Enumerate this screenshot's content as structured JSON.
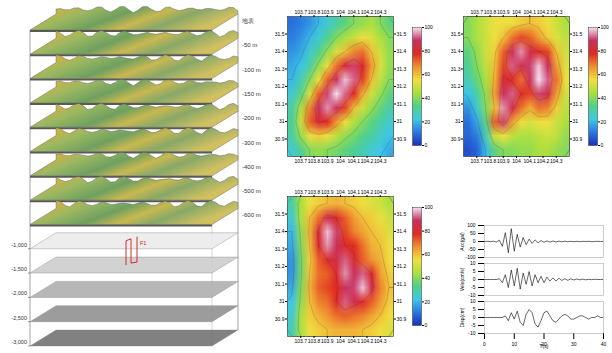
{
  "layer_diagram": {
    "right_labels": [
      "地表",
      "-50 m",
      "-100 m",
      "-150 m",
      "-200 m",
      "-300 m",
      "-400 m",
      "-500 m",
      "-600 m"
    ],
    "left_labels": [
      "-1,000",
      "-1,500",
      "-2,000",
      "-2,500",
      "-3,000"
    ],
    "fault_label": "F1"
  },
  "chart_data": [
    {
      "type": "heatmap",
      "xlim": [
        103.6,
        104.4
      ],
      "xticks": [
        103.7,
        103.8,
        103.9,
        104.0,
        104.1,
        104.2,
        104.3
      ],
      "ylim": [
        30.8,
        31.6
      ],
      "yticks": [
        30.9,
        31.0,
        31.1,
        31.2,
        31.3,
        31.4,
        31.5
      ],
      "colorbar": {
        "range": [
          0,
          100
        ],
        "ticks": [
          0,
          20,
          40,
          60,
          80,
          100
        ]
      },
      "contours": [
        20,
        40,
        60,
        80
      ],
      "cells": [
        [
          10,
          12,
          15,
          20,
          25,
          30,
          35,
          40,
          42,
          45,
          40,
          35
        ],
        [
          12,
          15,
          20,
          25,
          32,
          40,
          45,
          50,
          55,
          52,
          45,
          40
        ],
        [
          15,
          18,
          25,
          32,
          42,
          52,
          60,
          68,
          70,
          60,
          50,
          42
        ],
        [
          18,
          22,
          30,
          42,
          55,
          70,
          82,
          90,
          80,
          65,
          52,
          42
        ],
        [
          20,
          28,
          40,
          55,
          72,
          88,
          98,
          92,
          75,
          60,
          48,
          40
        ],
        [
          25,
          35,
          52,
          72,
          90,
          100,
          92,
          78,
          62,
          50,
          42,
          35
        ],
        [
          30,
          45,
          68,
          88,
          95,
          88,
          75,
          60,
          50,
          42,
          36,
          30
        ],
        [
          32,
          50,
          72,
          82,
          78,
          66,
          55,
          46,
          40,
          35,
          30,
          25
        ],
        [
          30,
          42,
          55,
          58,
          55,
          48,
          42,
          38,
          34,
          30,
          26,
          22
        ],
        [
          25,
          32,
          40,
          42,
          40,
          38,
          35,
          32,
          28,
          25,
          22,
          18
        ]
      ]
    },
    {
      "type": "heatmap",
      "xlim": [
        103.6,
        104.4
      ],
      "xticks": [
        103.7,
        103.8,
        103.9,
        104.0,
        104.1,
        104.2,
        104.3
      ],
      "ylim": [
        30.8,
        31.6
      ],
      "yticks": [
        30.9,
        31.0,
        31.1,
        31.2,
        31.3,
        31.4,
        31.5
      ],
      "colorbar": {
        "range": [
          0,
          100
        ],
        "ticks": [
          0,
          20,
          40,
          60,
          80,
          100
        ]
      },
      "contours": [
        20,
        40,
        60,
        80
      ],
      "cells": [
        [
          40,
          45,
          50,
          55,
          55,
          55,
          58,
          60,
          58,
          55,
          50,
          45
        ],
        [
          40,
          45,
          50,
          55,
          60,
          70,
          75,
          72,
          65,
          58,
          52,
          48
        ],
        [
          35,
          42,
          50,
          58,
          72,
          88,
          95,
          85,
          80,
          75,
          60,
          50
        ],
        [
          32,
          40,
          48,
          60,
          75,
          92,
          85,
          90,
          98,
          88,
          65,
          52
        ],
        [
          28,
          36,
          45,
          62,
          82,
          78,
          70,
          88,
          100,
          92,
          70,
          55
        ],
        [
          22,
          30,
          42,
          65,
          88,
          92,
          80,
          75,
          90,
          85,
          65,
          50
        ],
        [
          15,
          25,
          40,
          60,
          95,
          85,
          70,
          62,
          70,
          68,
          58,
          48
        ],
        [
          10,
          18,
          35,
          72,
          90,
          65,
          55,
          52,
          55,
          55,
          50,
          45
        ],
        [
          8,
          12,
          28,
          50,
          55,
          48,
          45,
          45,
          48,
          50,
          48,
          42
        ],
        [
          5,
          8,
          20,
          35,
          40,
          40,
          42,
          42,
          45,
          45,
          42,
          40
        ]
      ]
    },
    {
      "type": "heatmap",
      "xlim": [
        103.6,
        104.4
      ],
      "xticks": [
        103.7,
        103.8,
        103.9,
        104.0,
        104.1,
        104.2,
        104.3
      ],
      "ylim": [
        30.8,
        31.6
      ],
      "yticks": [
        30.9,
        31.0,
        31.1,
        31.2,
        31.3,
        31.4,
        31.5
      ],
      "colorbar": {
        "range": [
          0,
          100
        ],
        "ticks": [
          0,
          20,
          40,
          60,
          80,
          100
        ]
      },
      "contours": [
        20,
        40,
        60,
        80
      ],
      "cells": [
        [
          30,
          45,
          55,
          58,
          60,
          62,
          60,
          58,
          55,
          52,
          50,
          45
        ],
        [
          25,
          45,
          60,
          70,
          85,
          80,
          72,
          65,
          60,
          58,
          55,
          50
        ],
        [
          20,
          42,
          62,
          82,
          98,
          90,
          75,
          68,
          64,
          60,
          58,
          52
        ],
        [
          18,
          40,
          60,
          80,
          95,
          88,
          80,
          78,
          70,
          62,
          60,
          55
        ],
        [
          15,
          38,
          58,
          72,
          80,
          85,
          92,
          82,
          72,
          66,
          62,
          56
        ],
        [
          15,
          38,
          60,
          70,
          72,
          80,
          95,
          88,
          92,
          80,
          65,
          58
        ],
        [
          18,
          40,
          62,
          72,
          75,
          78,
          88,
          90,
          98,
          85,
          68,
          60
        ],
        [
          22,
          42,
          60,
          68,
          70,
          80,
          92,
          85,
          80,
          72,
          65,
          58
        ],
        [
          25,
          45,
          58,
          62,
          66,
          70,
          72,
          70,
          68,
          64,
          60,
          56
        ],
        [
          28,
          45,
          55,
          58,
          60,
          62,
          62,
          62,
          60,
          58,
          56,
          52
        ]
      ]
    },
    {
      "type": "line",
      "color": "#000000",
      "xlabel": "T(s)",
      "xlim": [
        0,
        40
      ],
      "xticks": [
        0,
        10,
        20,
        30,
        40
      ],
      "x": [
        0,
        1,
        2,
        3,
        4,
        5,
        6,
        7,
        8,
        9,
        10,
        11,
        12,
        13,
        14,
        15,
        16,
        17,
        18,
        19,
        20,
        21,
        22,
        23,
        24,
        25,
        26,
        27,
        28,
        29,
        30,
        31,
        32,
        33,
        34,
        35,
        36,
        37,
        38,
        39,
        40
      ],
      "series": [
        {
          "name": "Acc(gal)",
          "ylim": [
            -100,
            100
          ],
          "yticks": [
            -100,
            -50,
            0,
            50,
            100
          ],
          "values": [
            0,
            1,
            -1,
            2,
            -3,
            8,
            -30,
            55,
            -70,
            80,
            -60,
            45,
            -35,
            25,
            -20,
            15,
            -12,
            10,
            -8,
            6,
            -5,
            4,
            -4,
            3,
            -3,
            2,
            -2,
            2,
            -1,
            1,
            -1,
            1,
            -1,
            1,
            0,
            1,
            -1,
            0,
            1,
            0,
            0
          ]
        },
        {
          "name": "Velo(cm/s)",
          "ylim": [
            -10,
            10
          ],
          "yticks": [
            -10,
            -5,
            0,
            5,
            10
          ],
          "values": [
            0,
            0,
            0,
            0,
            0,
            0.5,
            -2,
            3,
            -5,
            6,
            -4,
            7,
            -6,
            4,
            -3,
            5,
            -4,
            3,
            -2,
            2,
            -2,
            1.5,
            -1,
            1,
            -1,
            0.8,
            -0.6,
            0.5,
            -0.5,
            0.4,
            -0.3,
            0.3,
            -0.2,
            0.2,
            -0.2,
            0.1,
            -0.1,
            0.1,
            0,
            0,
            0
          ]
        },
        {
          "name": "Disp(cm)",
          "ylim": [
            -10,
            10
          ],
          "yticks": [
            -10,
            -5,
            0,
            5,
            10
          ],
          "values": [
            0,
            0,
            0,
            0,
            0,
            0,
            0,
            1,
            -2,
            3,
            -1,
            4,
            -3,
            -5,
            2,
            5,
            3,
            -4,
            -6,
            -2,
            3,
            4,
            1,
            -2,
            -3,
            -1,
            1,
            2,
            1,
            -1,
            -1,
            0,
            1,
            1,
            0,
            -1,
            0,
            0,
            1,
            0,
            0
          ]
        }
      ]
    }
  ]
}
